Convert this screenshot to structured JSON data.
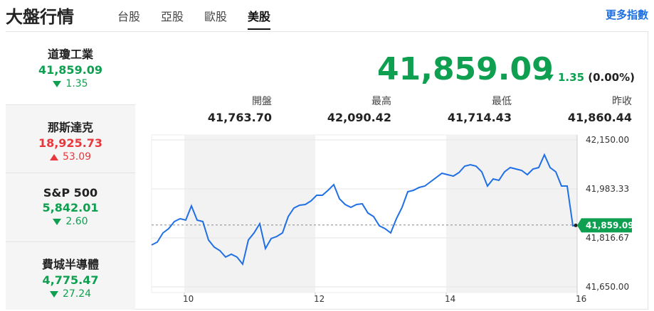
{
  "header": {
    "title": "大盤行情",
    "tabs": [
      "台股",
      "亞股",
      "歐股",
      "美股"
    ],
    "active_tab": 3,
    "more_link": "更多指數"
  },
  "indices": [
    {
      "name": "道瓊工業",
      "value": "41,859.09",
      "change": "1.35",
      "direction": "down"
    },
    {
      "name": "那斯達克",
      "value": "18,925.73",
      "change": "53.09",
      "direction": "up"
    },
    {
      "name": "S&P 500",
      "value": "5,842.01",
      "change": "2.60",
      "direction": "down"
    },
    {
      "name": "費城半導體",
      "value": "4,775.47",
      "change": "27.24",
      "direction": "down"
    }
  ],
  "quote": {
    "value": "41,859.09",
    "change": "1.35",
    "change_pct": "(0.00%)",
    "direction": "down",
    "stats": [
      {
        "label": "開盤",
        "value": "41,763.70"
      },
      {
        "label": "最高",
        "value": "42,090.42"
      },
      {
        "label": "最低",
        "value": "41,714.43"
      },
      {
        "label": "昨收",
        "value": "41,860.44"
      }
    ]
  },
  "chart_data": {
    "type": "line",
    "x": [
      9.5,
      9.587,
      9.674,
      9.761,
      9.848,
      9.935,
      10.022,
      10.109,
      10.196,
      10.283,
      10.37,
      10.457,
      10.543,
      10.63,
      10.717,
      10.804,
      10.891,
      10.978,
      11.065,
      11.152,
      11.239,
      11.326,
      11.413,
      11.5,
      11.587,
      11.674,
      11.761,
      11.848,
      11.935,
      12.022,
      12.109,
      12.196,
      12.283,
      12.37,
      12.457,
      12.543,
      12.63,
      12.717,
      12.804,
      12.891,
      12.978,
      13.065,
      13.152,
      13.239,
      13.326,
      13.413,
      13.5,
      13.587,
      13.674,
      13.761,
      13.848,
      13.935,
      14.022,
      14.109,
      14.196,
      14.283,
      14.37,
      14.457,
      14.543,
      14.63,
      14.717,
      14.804,
      14.891,
      14.978,
      15.065,
      15.152,
      15.239,
      15.326,
      15.413,
      15.5,
      15.587,
      15.674,
      15.761,
      15.848,
      15.935,
      15.978
    ],
    "series": [
      {
        "name": "道瓊工業",
        "color": "#1f6fe5",
        "values": [
          41792.5,
          41802.2,
          41833.6,
          41848.1,
          41872.2,
          41881.9,
          41877.1,
          41925.4,
          41877.1,
          41872.2,
          41809.4,
          41785.3,
          41773.2,
          41751.5,
          41761.1,
          41751.5,
          41727.3,
          41809.4,
          41833.6,
          41865.0,
          41780.4,
          41814.3,
          41821.5,
          41833.6,
          41889.1,
          41918.1,
          41927.8,
          41930.2,
          41942.3,
          41961.6,
          41961.6,
          41978.5,
          41997.8,
          41949.5,
          41930.2,
          41920.5,
          41930.2,
          41932.6,
          41901.2,
          41889.1,
          41857.7,
          41848.1,
          41833.6,
          41881.9,
          41920.5,
          41973.7,
          41978.5,
          41988.2,
          41993.0,
          42007.5,
          42022.0,
          42036.5,
          42031.7,
          42026.8,
          42038.9,
          42060.6,
          42065.5,
          42060.6,
          42041.3,
          41993.0,
          42017.2,
          42012.3,
          42041.3,
          42055.8,
          42051.0,
          42046.1,
          42031.7,
          42051.0,
          42055.8,
          42099.3,
          42055.8,
          42041.3,
          41993.0,
          41993.0,
          41857.7,
          41859.09
        ]
      }
    ],
    "reference_value": 41860.44,
    "xlim": [
      9.5,
      16
    ],
    "xticks": [
      10,
      12,
      14,
      16
    ],
    "ylim": [
      41650,
      42150
    ],
    "yticks": [
      {
        "value": 41650,
        "label": "41,650.00"
      },
      {
        "value": 41816.67,
        "label": "41,816.67"
      },
      {
        "value": 41983.33,
        "label": "41,983.33"
      },
      {
        "value": 42150,
        "label": "42,150.00"
      }
    ],
    "grid": true
  }
}
